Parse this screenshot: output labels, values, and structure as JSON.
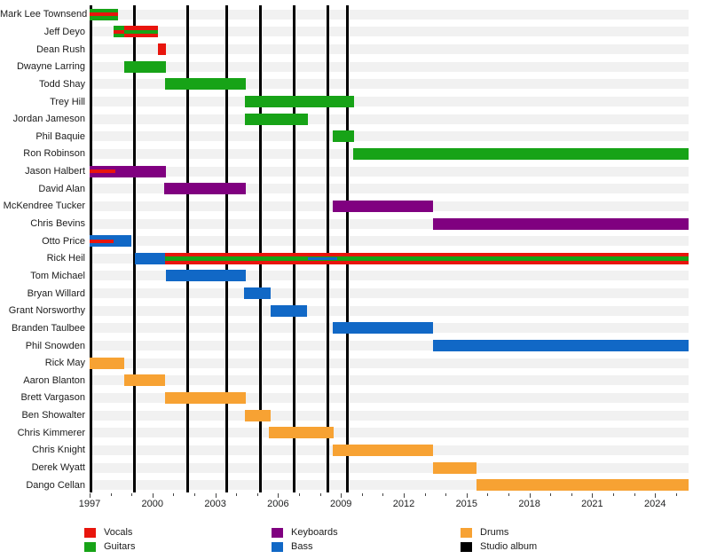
{
  "chart_data": {
    "type": "timeline",
    "x_axis": {
      "start": 1997.0,
      "end": 2025.6,
      "major_ticks": [
        1997,
        2000,
        2003,
        2006,
        2009,
        2012,
        2015,
        2018,
        2021,
        2024
      ],
      "minor_tick_step": 1
    },
    "colors": {
      "vocals": "#e8150d",
      "guitars": "#17a317",
      "keyboards": "#800080",
      "bass": "#1168c6",
      "drums": "#f7a233",
      "album": "#000000"
    },
    "album_lines": [
      1997.07,
      1999.12,
      2001.7,
      2003.55,
      2005.16,
      2006.77,
      2008.36,
      2009.3
    ],
    "legend": [
      {
        "label": "Vocals",
        "role": "vocals"
      },
      {
        "label": "Guitars",
        "role": "guitars"
      },
      {
        "label": "Keyboards",
        "role": "keyboards"
      },
      {
        "label": "Bass",
        "role": "bass"
      },
      {
        "label": "Drums",
        "role": "drums"
      },
      {
        "label": "Studio album",
        "role": "album"
      }
    ],
    "members": [
      {
        "name": "Mark Lee Townsend",
        "segments": [
          {
            "from": 1997.0,
            "to": 1998.36,
            "role": "guitars"
          }
        ],
        "stripes": [
          {
            "from": 1997.0,
            "to": 1998.36,
            "role": "vocals",
            "h": 4
          }
        ]
      },
      {
        "name": "Jeff Deyo",
        "segments": [
          {
            "from": 1998.16,
            "to": 1998.65,
            "role": "guitars"
          },
          {
            "from": 1998.65,
            "to": 2000.28,
            "role": "vocals"
          }
        ],
        "stripes": [
          {
            "from": 1998.16,
            "to": 1998.65,
            "role": "vocals",
            "h": 4
          },
          {
            "from": 1998.65,
            "to": 2000.28,
            "role": "guitars",
            "h": 4
          }
        ]
      },
      {
        "name": "Dean Rush",
        "segments": [
          {
            "from": 2000.28,
            "to": 2000.63,
            "role": "vocals"
          }
        ]
      },
      {
        "name": "Dwayne Larring",
        "segments": [
          {
            "from": 1998.65,
            "to": 2000.63,
            "role": "guitars"
          }
        ]
      },
      {
        "name": "Todd Shay",
        "segments": [
          {
            "from": 2000.6,
            "to": 2004.46,
            "role": "guitars"
          }
        ]
      },
      {
        "name": "Trey Hill",
        "segments": [
          {
            "from": 2004.4,
            "to": 2009.63,
            "role": "guitars"
          }
        ]
      },
      {
        "name": "Jordan Jameson",
        "segments": [
          {
            "from": 2004.4,
            "to": 2007.42,
            "role": "guitars"
          }
        ]
      },
      {
        "name": "Phil Baquie",
        "segments": [
          {
            "from": 2008.59,
            "to": 2009.63,
            "role": "guitars"
          }
        ]
      },
      {
        "name": "Ron Robinson",
        "segments": [
          {
            "from": 2009.58,
            "to": 2025.6,
            "role": "guitars"
          }
        ]
      },
      {
        "name": "Jason Halbert",
        "segments": [
          {
            "from": 1997.0,
            "to": 2000.65,
            "role": "keyboards"
          }
        ],
        "stripes": [
          {
            "from": 1997.0,
            "to": 1998.23,
            "role": "vocals",
            "h": 4
          }
        ]
      },
      {
        "name": "David Alan",
        "segments": [
          {
            "from": 2000.56,
            "to": 2004.47,
            "role": "keyboards"
          }
        ]
      },
      {
        "name": "McKendree Tucker",
        "segments": [
          {
            "from": 2008.6,
            "to": 2013.4,
            "role": "keyboards"
          }
        ]
      },
      {
        "name": "Chris Bevins",
        "segments": [
          {
            "from": 2013.4,
            "to": 2025.6,
            "role": "keyboards"
          }
        ]
      },
      {
        "name": "Otto Price",
        "segments": [
          {
            "from": 1997.0,
            "to": 1998.98,
            "role": "bass"
          }
        ],
        "stripes": [
          {
            "from": 1997.0,
            "to": 1998.16,
            "role": "vocals",
            "h": 4
          }
        ]
      },
      {
        "name": "Rick Heil",
        "segments": [
          {
            "from": 1999.16,
            "to": 2000.6,
            "role": "bass"
          },
          {
            "from": 2000.6,
            "to": 2025.6,
            "role": "vocals"
          }
        ],
        "stripes": [
          {
            "from": 2000.6,
            "to": 2025.6,
            "role": "guitars",
            "h": 5
          },
          {
            "from": 2007.41,
            "to": 2008.82,
            "role": "bass",
            "h": 3
          }
        ]
      },
      {
        "name": "Tom Michael",
        "segments": [
          {
            "from": 2000.63,
            "to": 2004.44,
            "role": "bass"
          }
        ]
      },
      {
        "name": "Bryan Willard",
        "segments": [
          {
            "from": 2004.37,
            "to": 2005.64,
            "role": "bass"
          }
        ]
      },
      {
        "name": "Grant Norsworthy",
        "segments": [
          {
            "from": 2005.64,
            "to": 2007.38,
            "role": "bass"
          }
        ]
      },
      {
        "name": "Branden Taulbee",
        "segments": [
          {
            "from": 2008.6,
            "to": 2013.4,
            "role": "bass"
          }
        ]
      },
      {
        "name": "Phil Snowden",
        "segments": [
          {
            "from": 2013.4,
            "to": 2025.6,
            "role": "bass"
          }
        ]
      },
      {
        "name": "Rick May",
        "segments": [
          {
            "from": 1997.0,
            "to": 1998.65,
            "role": "drums"
          }
        ]
      },
      {
        "name": "Aaron Blanton",
        "segments": [
          {
            "from": 1998.65,
            "to": 2000.59,
            "role": "drums"
          }
        ]
      },
      {
        "name": "Brett Vargason",
        "segments": [
          {
            "from": 2000.59,
            "to": 2004.44,
            "role": "drums"
          }
        ]
      },
      {
        "name": "Ben Showalter",
        "segments": [
          {
            "from": 2004.4,
            "to": 2005.64,
            "role": "drums"
          }
        ]
      },
      {
        "name": "Chris Kimmerer",
        "segments": [
          {
            "from": 2005.57,
            "to": 2008.64,
            "role": "drums"
          }
        ]
      },
      {
        "name": "Chris Knight",
        "segments": [
          {
            "from": 2008.6,
            "to": 2013.41,
            "role": "drums"
          }
        ]
      },
      {
        "name": "Derek Wyatt",
        "segments": [
          {
            "from": 2013.41,
            "to": 2015.46,
            "role": "drums"
          }
        ]
      },
      {
        "name": "Dango Cellan",
        "segments": [
          {
            "from": 2015.46,
            "to": 2025.6,
            "role": "drums"
          }
        ]
      }
    ]
  }
}
